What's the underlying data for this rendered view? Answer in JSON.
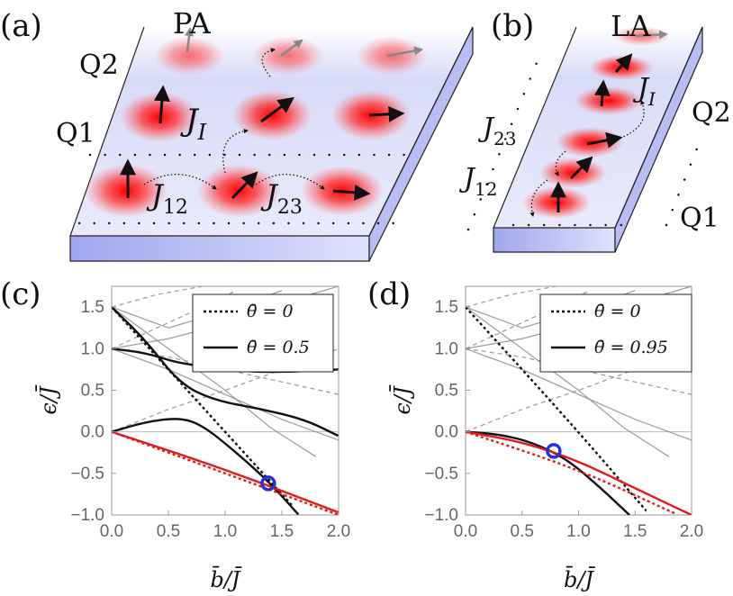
{
  "panel_a": {
    "tag": "(a)",
    "title": "PA",
    "row_top": "Q2",
    "row_bottom": "Q1",
    "coupling_inter": "J",
    "coupling_inter_sub": "I",
    "coupling_12": "J",
    "coupling_12_sub": "12",
    "coupling_23": "J",
    "coupling_23_sub": "23"
  },
  "panel_b": {
    "tag": "(b)",
    "title": "LA",
    "row_top": "Q2",
    "row_bottom": "Q1",
    "coupling_inter": "J",
    "coupling_inter_sub": "I",
    "coupling_12": "J",
    "coupling_12_sub": "12",
    "coupling_23": "J",
    "coupling_23_sub": "23"
  },
  "colors": {
    "slab_top": "#c7ccf5",
    "slab_side": "#a9afee",
    "spot_red": "#ff1a1a",
    "theta0_curve": "#111111",
    "ground_red": "#e31a1a",
    "marker_blue": "#2233dd",
    "excited_gray": "#888888"
  },
  "chart_data": [
    {
      "panel": "(c)",
      "type": "line",
      "xlabel": "b̄/J̄",
      "ylabel": "ϵ/J̄",
      "xlim": [
        0,
        2
      ],
      "ylim": [
        -1,
        1.75
      ],
      "xticks": [
        "0.0",
        "0.5",
        "1.0",
        "1.5",
        "2.0"
      ],
      "yticks": [
        "1.5",
        "1.0",
        "0.5",
        "0.0",
        "−0.5",
        "−1.0"
      ],
      "legend": [
        {
          "style": "dotted",
          "label": "θ̄ = 0"
        },
        {
          "style": "solid",
          "label": "θ̄ = 0.5"
        }
      ],
      "series": [
        {
          "name": "theta0_ground_black",
          "style": "dotted",
          "x": [
            0,
            1,
            1.6
          ],
          "y": [
            1.5,
            0.0,
            -0.9
          ]
        },
        {
          "name": "theta05_black_lower",
          "style": "solid",
          "x": [
            0,
            0.3,
            0.6,
            0.8,
            1.1,
            1.4,
            1.65
          ],
          "y": [
            0,
            0.12,
            0.17,
            0.08,
            -0.25,
            -0.62,
            -1.0
          ]
        },
        {
          "name": "theta05_black_upper",
          "style": "solid",
          "x": [
            0,
            0.3,
            0.6,
            0.9,
            1.3,
            1.7,
            2.0
          ],
          "y": [
            1.5,
            1.1,
            0.58,
            0.38,
            0.28,
            0.15,
            -0.05
          ]
        },
        {
          "name": "theta05_black_top",
          "style": "solid",
          "x": [
            0,
            0.3,
            0.6,
            0.9,
            1.2,
            1.6,
            2.0
          ],
          "y": [
            1.0,
            0.95,
            0.82,
            0.78,
            0.72,
            0.72,
            0.75
          ]
        },
        {
          "name": "red_solid",
          "style": "solid",
          "x": [
            0,
            1,
            2
          ],
          "y": [
            0,
            -0.45,
            -0.97
          ]
        },
        {
          "name": "red_dotted",
          "style": "dotted",
          "x": [
            0,
            1,
            2
          ],
          "y": [
            0,
            -0.5,
            -1.0
          ]
        }
      ],
      "marker": {
        "x": 1.38,
        "y": -0.62
      }
    },
    {
      "panel": "(d)",
      "type": "line",
      "xlabel": "b̄/J̄",
      "ylabel": "ϵ/J̄",
      "xlim": [
        0,
        2
      ],
      "ylim": [
        -1,
        1.75
      ],
      "xticks": [
        "0.0",
        "0.5",
        "1.0",
        "1.5",
        "2.0"
      ],
      "yticks": [
        "1.5",
        "1.0",
        "0.5",
        "0.0",
        "−0.5",
        "−1.0"
      ],
      "legend": [
        {
          "style": "dotted",
          "label": "θ̄ = 0"
        },
        {
          "style": "solid",
          "label": "θ̄ = 0.95"
        }
      ],
      "series": [
        {
          "name": "theta0_ground_black",
          "style": "dotted",
          "x": [
            0,
            1,
            1.6
          ],
          "y": [
            1.5,
            0.0,
            -0.95
          ]
        },
        {
          "name": "theta095_black",
          "style": "solid",
          "x": [
            0,
            0.3,
            0.6,
            0.9,
            1.2,
            1.45
          ],
          "y": [
            0,
            -0.03,
            -0.13,
            -0.33,
            -0.68,
            -1.0
          ]
        },
        {
          "name": "red_solid",
          "style": "solid",
          "x": [
            0,
            0.5,
            1,
            1.5,
            2.0
          ],
          "y": [
            0,
            -0.12,
            -0.35,
            -0.68,
            -1.0
          ]
        },
        {
          "name": "red_dotted",
          "style": "dotted",
          "x": [
            0,
            1,
            1.85
          ],
          "y": [
            0,
            -0.45,
            -0.98
          ]
        }
      ],
      "marker": {
        "x": 0.78,
        "y": -0.23
      }
    }
  ]
}
